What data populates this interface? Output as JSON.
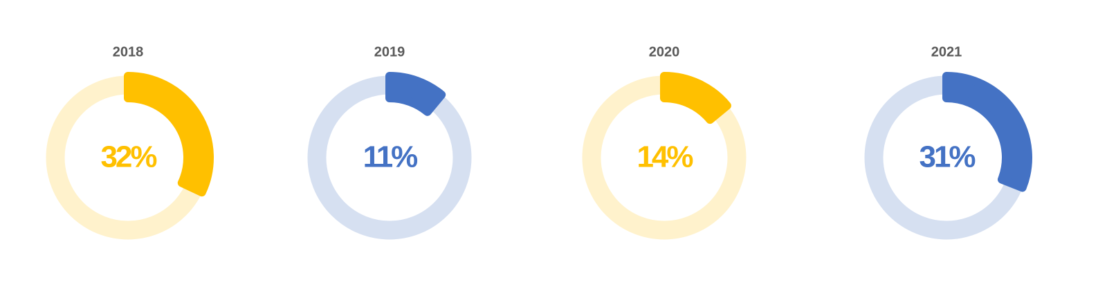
{
  "chart_data": [
    {
      "type": "donut",
      "title": "2018",
      "values": [
        32
      ],
      "value_labels": [
        "32%"
      ],
      "color": "#ffc000",
      "track_color": "#fff2cc"
    },
    {
      "type": "donut",
      "title": "2019",
      "values": [
        11
      ],
      "value_labels": [
        "11%"
      ],
      "color": "#4472c4",
      "track_color": "#d6e0f1"
    },
    {
      "type": "donut",
      "title": "2020",
      "values": [
        14
      ],
      "value_labels": [
        "14%"
      ],
      "color": "#ffc000",
      "track_color": "#fff2cc"
    },
    {
      "type": "donut",
      "title": "2021",
      "values": [
        31
      ],
      "value_labels": [
        "31%"
      ],
      "color": "#4472c4",
      "track_color": "#d6e0f1"
    }
  ]
}
